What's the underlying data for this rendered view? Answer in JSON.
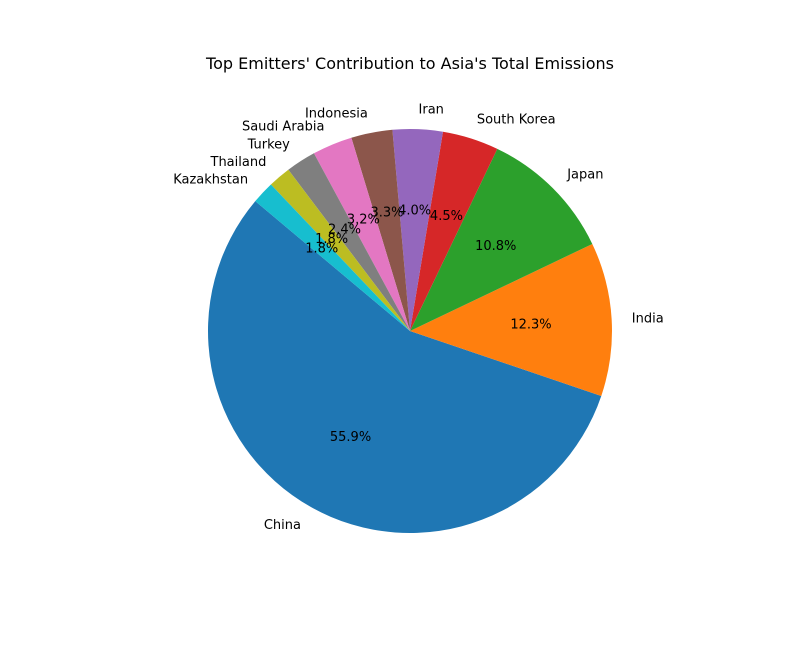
{
  "chart_data": {
    "type": "pie",
    "title": "Top Emitters' Contribution to Asia's Total Emissions",
    "slices": [
      {
        "label": "China",
        "value": 55.9,
        "pct_label": "55.9%",
        "color": "#1f77b4"
      },
      {
        "label": "India",
        "value": 12.3,
        "pct_label": "12.3%",
        "color": "#ff7f0e"
      },
      {
        "label": "Japan",
        "value": 10.8,
        "pct_label": "10.8%",
        "color": "#2ca02c"
      },
      {
        "label": "South Korea",
        "value": 4.5,
        "pct_label": "4.5%",
        "color": "#d62728"
      },
      {
        "label": "Iran",
        "value": 4.0,
        "pct_label": "4.0%",
        "color": "#9467bd"
      },
      {
        "label": "Indonesia",
        "value": 3.3,
        "pct_label": "3.3%",
        "color": "#8c564b"
      },
      {
        "label": "Saudi Arabia",
        "value": 3.2,
        "pct_label": "3.2%",
        "color": "#e377c2"
      },
      {
        "label": "Turkey",
        "value": 2.4,
        "pct_label": "2.4%",
        "color": "#7f7f7f"
      },
      {
        "label": "Thailand",
        "value": 1.8,
        "pct_label": "1.8%",
        "color": "#bcbd22"
      },
      {
        "label": "Kazakhstan",
        "value": 1.8,
        "pct_label": "1.8%",
        "color": "#17becf"
      }
    ],
    "start_angle_deg": 140,
    "direction": "counterclockwise"
  }
}
